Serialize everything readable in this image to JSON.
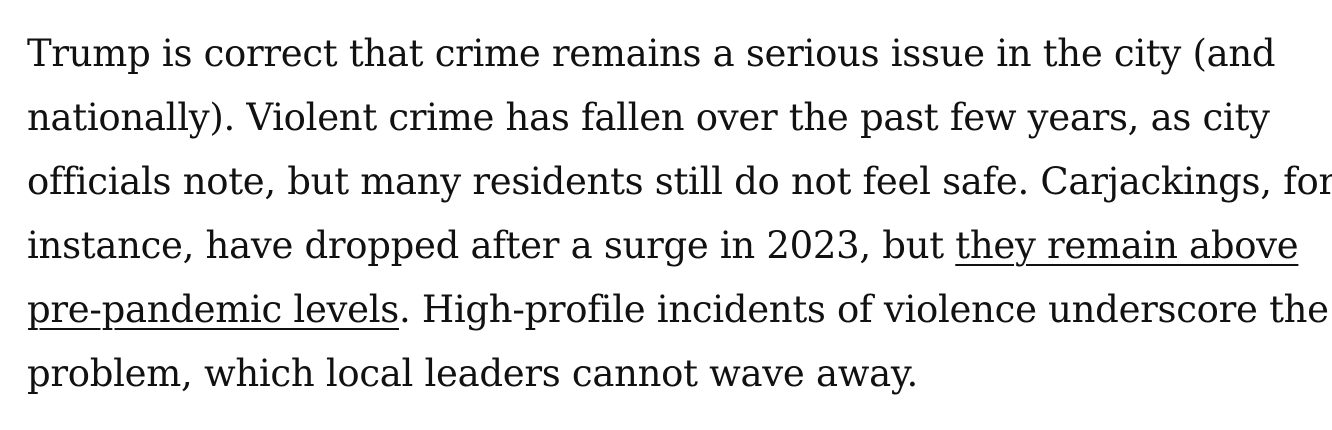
{
  "article": {
    "lines": [
      "Trump is correct that crime remains a serious issue in the city (and",
      "nationally). Violent crime has fallen over the past few years, as city",
      "officials note, but many residents still do not feel safe. Carjackings, for",
      "instance, have dropped after a surge in 2023, but ",
      ". High-profile incidents of violence underscore the",
      "problem, which local leaders cannot wave away."
    ],
    "link": {
      "part1": "they remain above",
      "part2": "pre-pandemic levels"
    }
  }
}
